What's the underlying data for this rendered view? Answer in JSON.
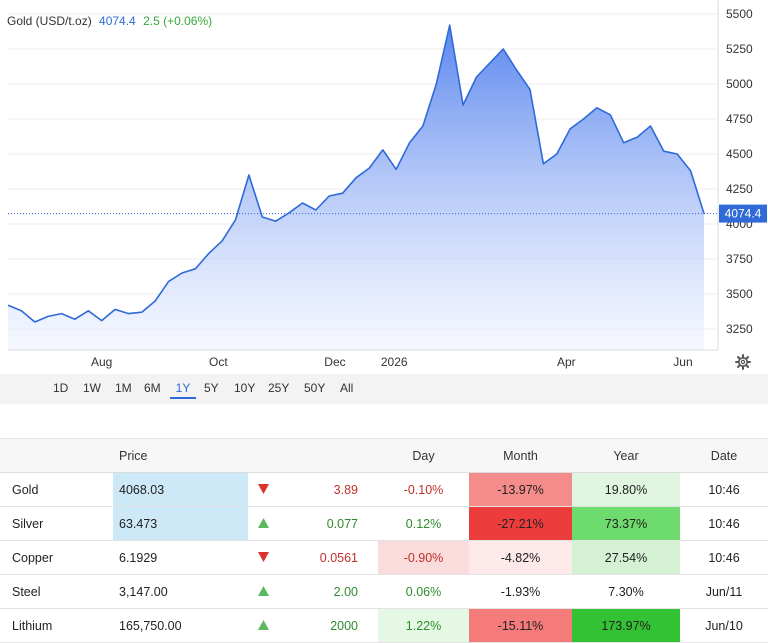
{
  "legend": {
    "name": "Gold (USD/t.oz)",
    "price": "4074.4",
    "change": "2.5 (+0.06%)"
  },
  "colors": {
    "line": "#2f6ad8",
    "fill_top": "#5a86ee",
    "fill_bottom": "#f0f4ff",
    "up": "#2e8b2e",
    "down": "#c0302a"
  },
  "range_buttons": [
    "1D",
    "1W",
    "1M",
    "6M",
    "1Y",
    "5Y",
    "10Y",
    "25Y",
    "50Y",
    "All"
  ],
  "active_range": "1Y",
  "chart_data": {
    "type": "area",
    "current_value_label": "4074.4",
    "current_value": 4074.4,
    "ylim": [
      3100,
      5600
    ],
    "y_ticks": [
      3250,
      3500,
      3750,
      4000,
      4250,
      4500,
      4750,
      5000,
      5250,
      5500
    ],
    "x_ticks": [
      {
        "label": "Aug",
        "x": "2025-08-01"
      },
      {
        "label": "Oct",
        "x": "2025-10-01"
      },
      {
        "label": "Dec",
        "x": "2025-12-01"
      },
      {
        "label": "2026",
        "x": "2026-01-01"
      },
      {
        "label": "Apr",
        "x": "2026-04-01"
      },
      {
        "label": "Jun",
        "x": "2026-06-01"
      }
    ],
    "series": [
      {
        "x": [
          "2025-06-13",
          "2025-06-20",
          "2025-06-27",
          "2025-07-04",
          "2025-07-11",
          "2025-07-18",
          "2025-07-25",
          "2025-08-01",
          "2025-08-08",
          "2025-08-15",
          "2025-08-22",
          "2025-08-29",
          "2025-09-05",
          "2025-09-12",
          "2025-09-19",
          "2025-09-26",
          "2025-10-03",
          "2025-10-10",
          "2025-10-17",
          "2025-10-24",
          "2025-10-31",
          "2025-11-07",
          "2025-11-14",
          "2025-11-21",
          "2025-11-28",
          "2025-12-05",
          "2025-12-12",
          "2025-12-19",
          "2025-12-26",
          "2026-01-02",
          "2026-01-09",
          "2026-01-16",
          "2026-01-23",
          "2026-01-30",
          "2026-02-06",
          "2026-02-13",
          "2026-02-20",
          "2026-02-27",
          "2026-03-06",
          "2026-03-13",
          "2026-03-20",
          "2026-03-27",
          "2026-04-03",
          "2026-04-10",
          "2026-04-17",
          "2026-04-24",
          "2026-05-01",
          "2026-05-08",
          "2026-05-15",
          "2026-05-22",
          "2026-05-29",
          "2026-06-05",
          "2026-06-12"
        ],
        "y": [
          3420,
          3380,
          3300,
          3340,
          3360,
          3320,
          3380,
          3310,
          3390,
          3360,
          3370,
          3450,
          3590,
          3650,
          3680,
          3790,
          3880,
          4030,
          4350,
          4050,
          4020,
          4080,
          4150,
          4100,
          4200,
          4220,
          4330,
          4400,
          4530,
          4390,
          4580,
          4700,
          5000,
          5420,
          4850,
          5050,
          5150,
          5250,
          5100,
          4960,
          4430,
          4500,
          4680,
          4750,
          4830,
          4780,
          4580,
          4620,
          4700,
          4520,
          4500,
          4380,
          4074.4
        ]
      }
    ]
  },
  "table": {
    "headers": {
      "name": "",
      "price": "Price",
      "change": "",
      "day": "Day",
      "month": "Month",
      "year": "Year",
      "date": "Date"
    },
    "rows": [
      {
        "name": "Gold",
        "price": "4068.03",
        "direction": "down",
        "change": "3.89",
        "day": "-0.10%",
        "month": "-13.97%",
        "year": "19.80%",
        "date": "10:46",
        "price_bg": "#cde8f6",
        "day_bg": "#ffffff",
        "month_bg": "#f58c8c",
        "year_bg": "#dff5df"
      },
      {
        "name": "Silver",
        "price": "63.473",
        "direction": "up",
        "change": "0.077",
        "day": "0.12%",
        "month": "-27.21%",
        "year": "73.37%",
        "date": "10:46",
        "price_bg": "#cde8f6",
        "day_bg": "#ffffff",
        "month_bg": "#ec3c3c",
        "year_bg": "#6edb6e"
      },
      {
        "name": "Copper",
        "price": "6.1929",
        "direction": "down",
        "change": "0.0561",
        "day": "-0.90%",
        "month": "-4.82%",
        "year": "27.54%",
        "date": "10:46",
        "price_bg": "#ffffff",
        "day_bg": "#fbdcdc",
        "month_bg": "#fde9e9",
        "year_bg": "#d4f1d4"
      },
      {
        "name": "Steel",
        "price": "3,147.00",
        "direction": "up",
        "change": "2.00",
        "day": "0.06%",
        "month": "-1.93%",
        "year": "7.30%",
        "date": "Jun/11",
        "price_bg": "#ffffff",
        "day_bg": "#ffffff",
        "month_bg": "#ffffff",
        "year_bg": "#ffffff"
      },
      {
        "name": "Lithium",
        "price": "165,750.00",
        "direction": "up",
        "change": "2000",
        "day": "1.22%",
        "month": "-15.11%",
        "year": "173.97%",
        "date": "Jun/10",
        "price_bg": "#ffffff",
        "day_bg": "#e4f8e4",
        "month_bg": "#f57a7a",
        "year_bg": "#33c233"
      }
    ]
  }
}
